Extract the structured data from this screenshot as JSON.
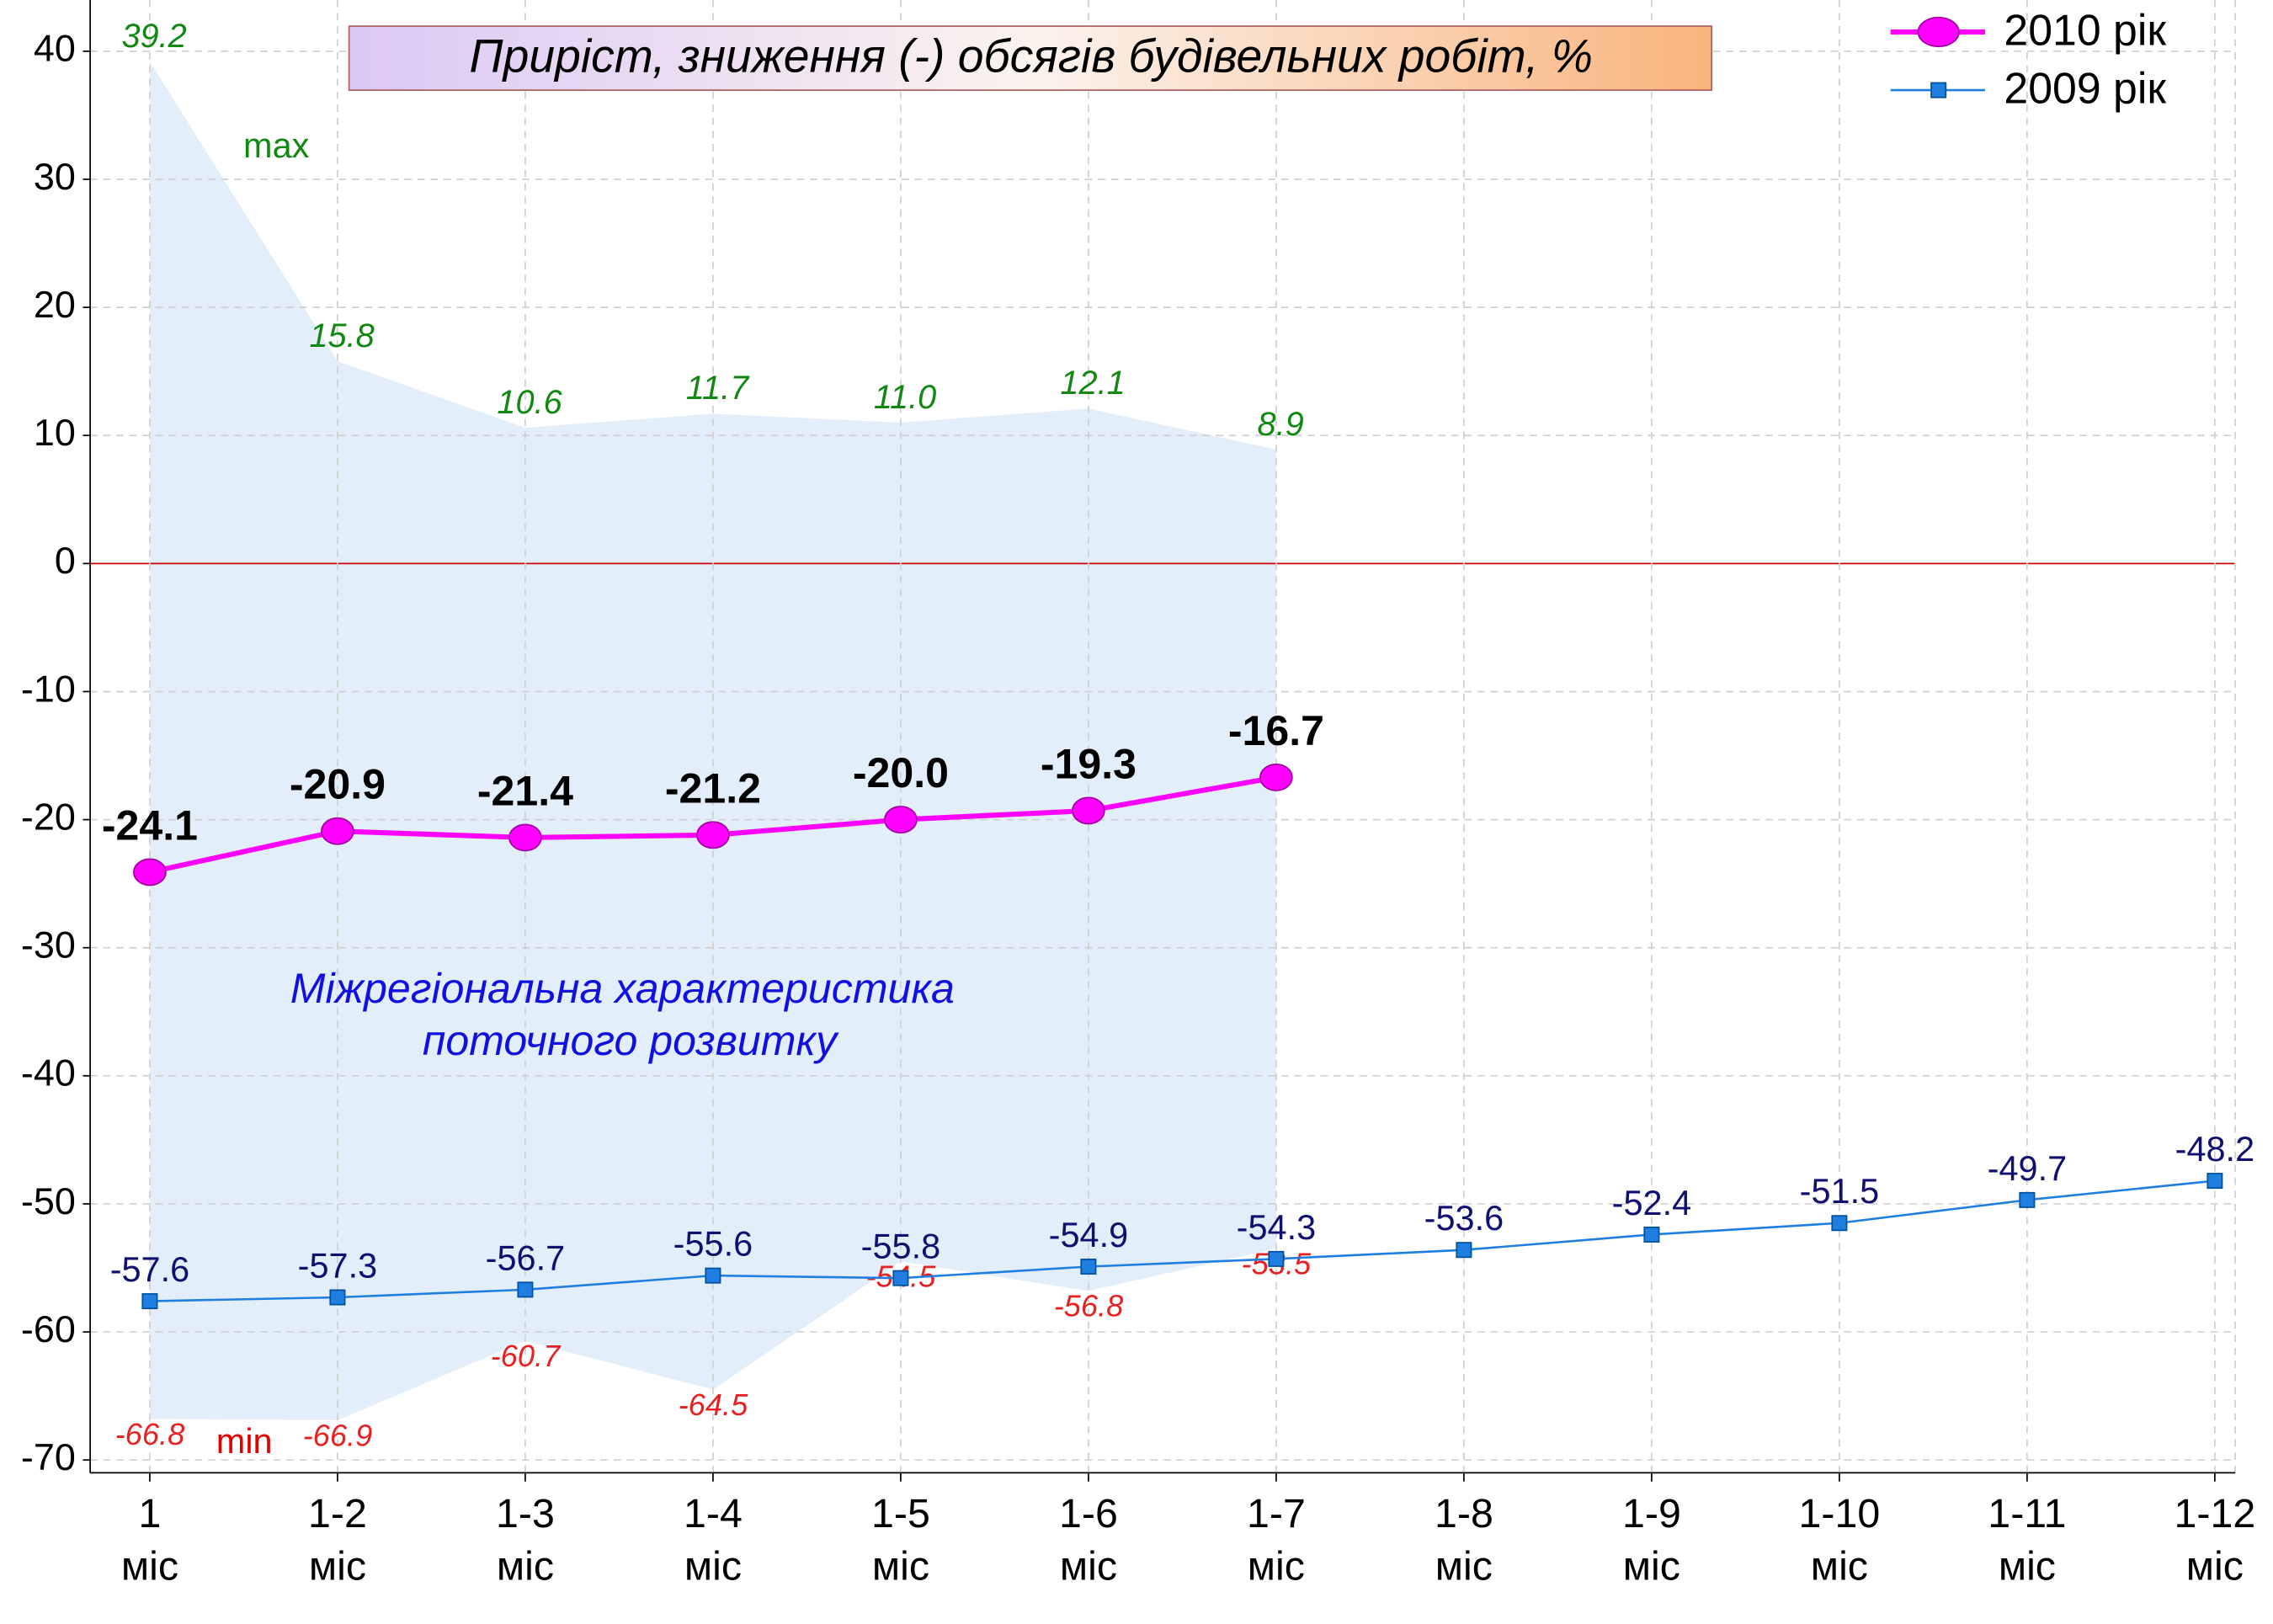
{
  "chart_data": {
    "type": "line",
    "title": "Приріст, зниження (-) обсягів будівельних робіт, %",
    "categories": [
      "1 міс",
      "1-2 міс",
      "1-3 міс",
      "1-4 міс",
      "1-5 міс",
      "1-6 міс",
      "1-7 міс",
      "1-8 міс",
      "1-9 міс",
      "1-10 міс",
      "1-11 міс",
      "1-12 міс"
    ],
    "series": [
      {
        "name": "2010 рік",
        "color": "#ff00ff",
        "values": [
          -24.1,
          -20.9,
          -21.4,
          -21.2,
          -20.0,
          -19.3,
          -16.7,
          null,
          null,
          null,
          null,
          null
        ],
        "value_labels": [
          "-24.1",
          "-20.9",
          "-21.4",
          "-21.2",
          "-20.0",
          "-19.3",
          "-16.7",
          null,
          null,
          null,
          null,
          null
        ]
      },
      {
        "name": "2009 рік",
        "color": "#1f7fe0",
        "values": [
          -57.6,
          -57.3,
          -56.7,
          -55.6,
          -55.8,
          -54.9,
          -54.3,
          -53.6,
          -52.4,
          -51.5,
          -49.7,
          -48.2
        ]
      }
    ],
    "band": {
      "color": "#e3eefb",
      "max": [
        39.2,
        15.8,
        10.6,
        11.7,
        11.0,
        12.1,
        8.9
      ],
      "max_labels": [
        "39.2",
        "15.8",
        "10.6",
        "11.7",
        "11.0",
        "12.1",
        "8.9"
      ],
      "min": [
        -66.8,
        -66.9,
        -60.7,
        -64.5,
        -54.5,
        -56.8,
        -53.5
      ]
    },
    "annotations": [
      "max",
      "min",
      "Міжрегіональна характеристика",
      "поточного розвитку"
    ],
    "ylim": [
      -71,
      44
    ],
    "yticks": [
      -70,
      -60,
      -50,
      -40,
      -30,
      -20,
      -10,
      0,
      10,
      20,
      30,
      40
    ],
    "grid": true,
    "legend": "upper right"
  }
}
